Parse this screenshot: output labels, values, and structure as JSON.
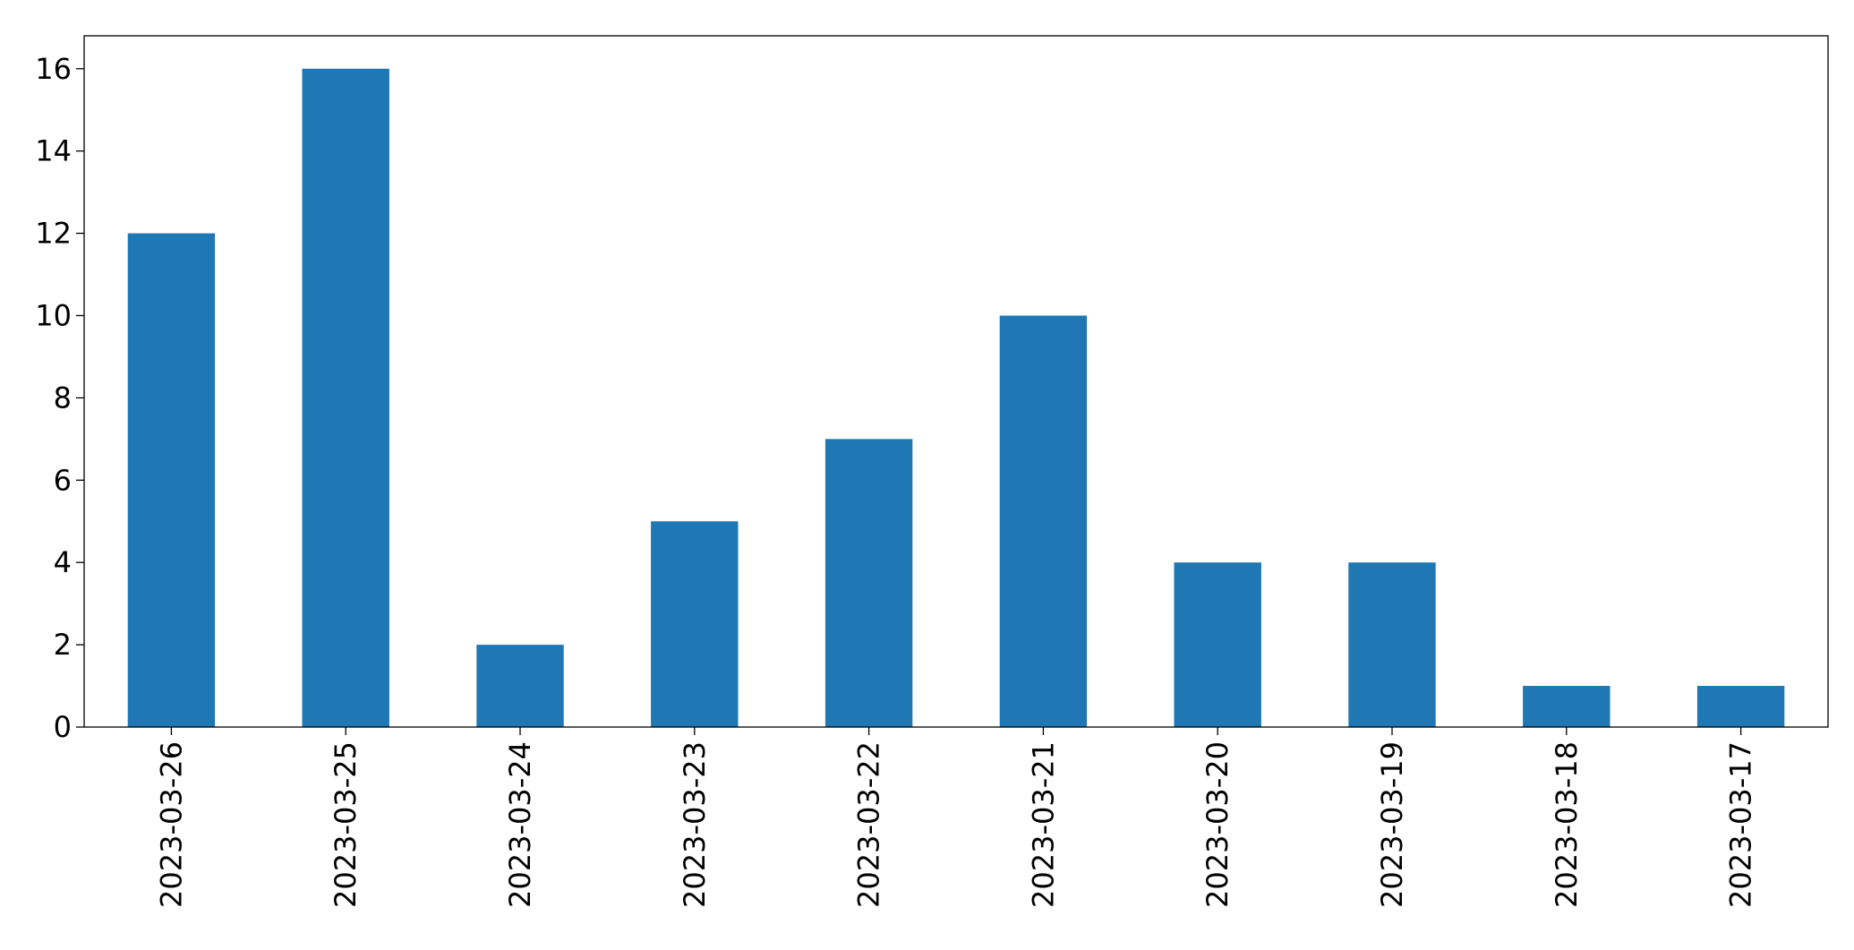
{
  "chart_data": {
    "type": "bar",
    "categories": [
      "2023-03-26",
      "2023-03-25",
      "2023-03-24",
      "2023-03-23",
      "2023-03-22",
      "2023-03-21",
      "2023-03-20",
      "2023-03-19",
      "2023-03-18",
      "2023-03-17"
    ],
    "values": [
      12,
      16,
      2,
      5,
      7,
      10,
      4,
      4,
      1,
      1
    ],
    "color": "#1f77b4",
    "ylim": [
      0,
      16.8
    ],
    "yticks": [
      0,
      2,
      4,
      6,
      8,
      10,
      12,
      14,
      16
    ],
    "grid": false
  }
}
